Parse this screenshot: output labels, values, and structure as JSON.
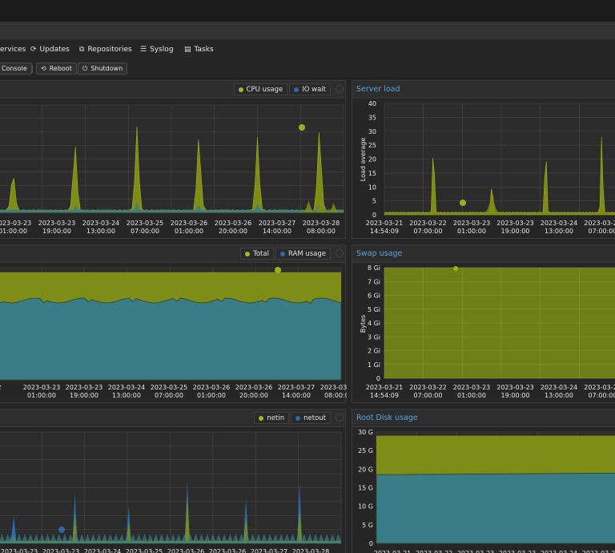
{
  "nav_tabs": [
    {
      "label": "ervices",
      "icon": "services-icon",
      "glyph": ""
    },
    {
      "label": "Updates",
      "icon": "refresh-icon",
      "glyph": "⟳"
    },
    {
      "label": "Repositories",
      "icon": "repositories-icon",
      "glyph": "⧉"
    },
    {
      "label": "Syslog",
      "icon": "list-icon",
      "glyph": "☰"
    },
    {
      "label": "Tasks",
      "icon": "tasks-icon",
      "glyph": "▤"
    }
  ],
  "toolbar": {
    "console_label": "Console",
    "reboot_label": "Reboot",
    "shutdown_label": "Shutdown"
  },
  "colors": {
    "green_series": "#8fa31a",
    "blue_series": "#3b7d86",
    "title": "#57a3de"
  },
  "panels": {
    "cpu": {
      "legend": [
        "CPU usage",
        "IO wait"
      ],
      "x_ticks": [
        [
          "2023-03-23",
          "01:00:00"
        ],
        [
          "2023-03-23",
          "19:00:00"
        ],
        [
          "2023-03-24",
          "13:00:00"
        ],
        [
          "2023-03-25",
          "07:00:00"
        ],
        [
          "2023-03-26",
          "01:00:00"
        ],
        [
          "2023-03-26",
          "20:00:00"
        ],
        [
          "2023-03-27",
          "14:00:00"
        ],
        [
          "2023-03-28",
          "08:00:00"
        ]
      ]
    },
    "load": {
      "title": "Server load",
      "ylabel": "Load average",
      "y_ticks": [
        "40",
        "35",
        "30",
        "25",
        "20",
        "15",
        "10",
        "5",
        "0"
      ],
      "x_ticks": [
        [
          "2023-03-21",
          "14:54:09"
        ],
        [
          "2023-03-22",
          "07:00:00"
        ],
        [
          "2023-03-23",
          "01:00:00"
        ],
        [
          "2023-03-23",
          "19:00:00"
        ],
        [
          "2023-03-24",
          "13:00:00"
        ],
        [
          "2023-03-25",
          "07:00:00"
        ]
      ]
    },
    "mem": {
      "legend": [
        "Total",
        "RAM usage"
      ],
      "x_ticks": [
        [
          "2",
          ""
        ],
        [
          "2023-03-23",
          "01:00:00"
        ],
        [
          "2023-03-23",
          "19:00:00"
        ],
        [
          "2023-03-24",
          "13:00:00"
        ],
        [
          "2023-03-25",
          "07:00:00"
        ],
        [
          "2023-03-26",
          "01:00:00"
        ],
        [
          "2023-03-26",
          "20:00:00"
        ],
        [
          "2023-03-27",
          "14:00:00"
        ],
        [
          "2023-03-28",
          "08:00:00"
        ]
      ]
    },
    "swap": {
      "title": "Swap usage",
      "ylabel": "Bytes",
      "y_ticks": [
        "8 Gi",
        "7 Gi",
        "6 Gi",
        "5 Gi",
        "4 Gi",
        "3 Gi",
        "2 Gi",
        "1 Gi",
        "0"
      ],
      "x_ticks": [
        [
          "2023-03-21",
          "14:54:09"
        ],
        [
          "2023-03-22",
          "07:00:00"
        ],
        [
          "2023-03-23",
          "01:00:00"
        ],
        [
          "2023-03-23",
          "19:00:00"
        ],
        [
          "2023-03-24",
          "13:00:00"
        ],
        [
          "2023-03-25",
          "07:00:00"
        ]
      ]
    },
    "net": {
      "legend": [
        "netin",
        "netout"
      ],
      "x_ticks": [
        "2023-03-23",
        "2023-03-23",
        "2023-03-24",
        "2023-03-25",
        "2023-03-26",
        "2023-03-26",
        "2023-03-27",
        "2023-03-28"
      ]
    },
    "disk": {
      "title": "Root Disk usage",
      "y_ticks": [
        "30 G",
        "25 G",
        "20 G",
        "15 G",
        "10 G",
        "5 G",
        "0"
      ],
      "x_ticks": [
        "2023-03-21",
        "2023-03-22",
        "2023-03-23",
        "2023-03-23",
        "2023-03-24",
        "2023-03-25"
      ]
    }
  },
  "chart_data": [
    {
      "type": "area",
      "name": "cpu",
      "series": [
        {
          "name": "CPU usage",
          "spike_positions": [
            0.04,
            0.22,
            0.4,
            0.58,
            0.75,
            0.93
          ],
          "spike_heights": [
            0.45,
            0.72,
            0.8,
            0.8,
            0.7,
            0.88
          ],
          "baseline": 0.02
        },
        {
          "name": "IO wait",
          "baseline": 0.01
        }
      ]
    },
    {
      "type": "area",
      "name": "load",
      "ylim": [
        0,
        40
      ],
      "series": [
        {
          "name": "Load average",
          "peaks": [
            {
              "x": "2023-03-22 02:00",
              "y": 35
            },
            {
              "x": "2023-03-23 01:00",
              "y": 16
            },
            {
              "x": "2023-03-23 19:00",
              "y": 33
            },
            {
              "x": "2023-03-24 13:00",
              "y": 36
            },
            {
              "x": "2023-03-25 03:00",
              "y": 33
            }
          ],
          "baseline": 0.5
        }
      ]
    },
    {
      "type": "area",
      "name": "mem",
      "series": [
        {
          "name": "Total",
          "value": 0.96
        },
        {
          "name": "RAM usage",
          "value": 0.68
        }
      ]
    },
    {
      "type": "area",
      "name": "swap",
      "ylim": [
        0,
        8
      ],
      "series": [
        {
          "name": "Total",
          "value": 8
        },
        {
          "name": "Used",
          "value": 0
        }
      ]
    },
    {
      "type": "area",
      "name": "net",
      "series": [
        {
          "name": "netin"
        },
        {
          "name": "netout"
        }
      ]
    },
    {
      "type": "area",
      "name": "disk",
      "ylim": [
        0,
        30
      ],
      "series": [
        {
          "name": "Total",
          "value": 29
        },
        {
          "name": "Used",
          "value": 18.5
        }
      ]
    }
  ]
}
